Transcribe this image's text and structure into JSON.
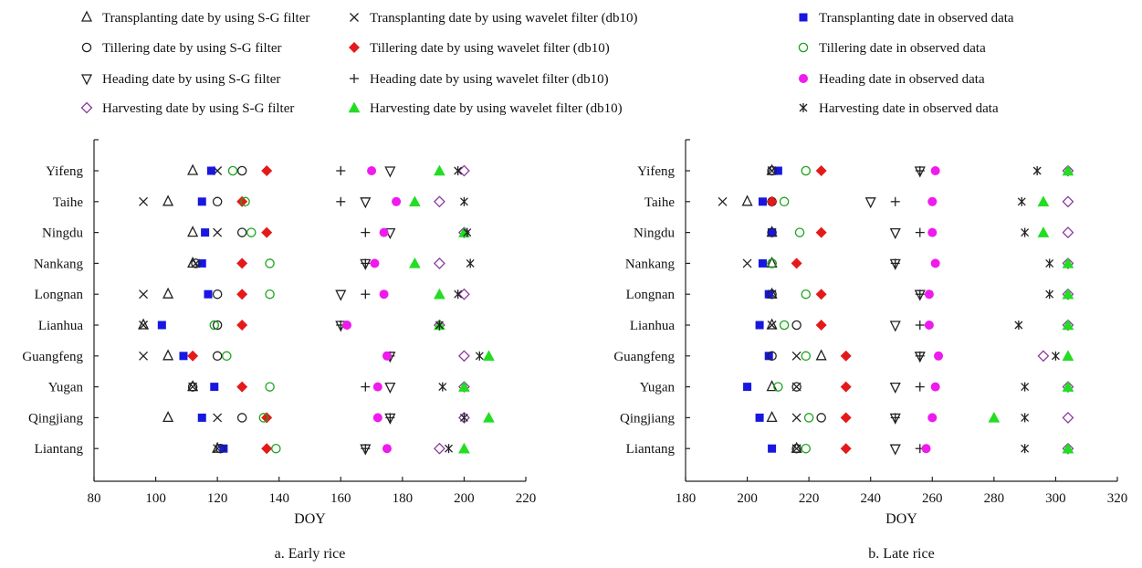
{
  "legend": [
    {
      "id": "sg_transplant",
      "label": "Transplanting date by using S-G filter",
      "marker": "triangle-up-open",
      "color": "#222222"
    },
    {
      "id": "wv_transplant",
      "label": "Transplanting date by using wavelet filter (db10)",
      "marker": "x",
      "color": "#222222"
    },
    {
      "id": "obs_transplant",
      "label": "Transplanting date in observed data",
      "marker": "square-filled",
      "color": "#1717e0"
    },
    {
      "id": "sg_tiller",
      "label": "Tillering date by using S-G filter",
      "marker": "circle-open",
      "color": "#222222"
    },
    {
      "id": "wv_tiller",
      "label": "Tillering date by using wavelet filter (db10)",
      "marker": "diamond-filled",
      "color": "#e41a1a"
    },
    {
      "id": "obs_tiller",
      "label": "Tillering date in observed data",
      "marker": "circle-open",
      "color": "#1aa31a"
    },
    {
      "id": "sg_heading",
      "label": "Heading date by using S-G filter",
      "marker": "triangle-down-open",
      "color": "#222222"
    },
    {
      "id": "wv_heading",
      "label": "Heading date by using wavelet filter (db10)",
      "marker": "plus",
      "color": "#222222"
    },
    {
      "id": "obs_heading",
      "label": "Heading date in observed data",
      "marker": "circle-filled",
      "color": "#ee1aee"
    },
    {
      "id": "sg_harvest",
      "label": "Harvesting date by using S-G filter",
      "marker": "diamond-open",
      "color": "#8b3a9e"
    },
    {
      "id": "wv_harvest",
      "label": "Harvesting date by using wavelet filter (db10)",
      "marker": "triangle-up-filled",
      "color": "#22dd22"
    },
    {
      "id": "obs_harvest",
      "label": "Harvesting date in observed data",
      "marker": "asterisk",
      "color": "#222222"
    }
  ],
  "chart_data": [
    {
      "type": "scatter",
      "caption": "a. Early rice",
      "xlabel": "DOY",
      "xlim": [
        80,
        220
      ],
      "xticks": [
        80,
        100,
        120,
        140,
        160,
        180,
        200,
        220
      ],
      "categories": [
        "Yifeng",
        "Taihe",
        "Ningdu",
        "Nankang",
        "Longnan",
        "Lianhua",
        "Guangfeng",
        "Yugan",
        "Qingjiang",
        "Liantang"
      ],
      "series": [
        {
          "id": "sg_transplant",
          "values": [
            112,
            104,
            112,
            112,
            104,
            96,
            104,
            112,
            104,
            120
          ]
        },
        {
          "id": "wv_transplant",
          "values": [
            120,
            96,
            120,
            113,
            96,
            96,
            96,
            112,
            120,
            120
          ]
        },
        {
          "id": "obs_transplant",
          "values": [
            118,
            115,
            116,
            115,
            117,
            102,
            109,
            119,
            115,
            122
          ]
        },
        {
          "id": "sg_tiller",
          "values": [
            128,
            120,
            128,
            113,
            120,
            120,
            120,
            112,
            128,
            121
          ]
        },
        {
          "id": "wv_tiller",
          "values": [
            136,
            128,
            136,
            128,
            128,
            128,
            112,
            128,
            136,
            136
          ]
        },
        {
          "id": "obs_tiller",
          "values": [
            125,
            129,
            131,
            137,
            137,
            119,
            123,
            137,
            135,
            139
          ]
        },
        {
          "id": "sg_heading",
          "values": [
            176,
            168,
            176,
            168,
            160,
            160,
            176,
            176,
            176,
            168
          ]
        },
        {
          "id": "wv_heading",
          "values": [
            160,
            160,
            168,
            168,
            168,
            160,
            176,
            168,
            176,
            168
          ]
        },
        {
          "id": "obs_heading",
          "values": [
            170,
            178,
            174,
            171,
            174,
            162,
            175,
            172,
            172,
            175
          ]
        },
        {
          "id": "sg_harvest",
          "values": [
            200,
            192,
            200,
            192,
            200,
            192,
            200,
            200,
            200,
            192
          ]
        },
        {
          "id": "wv_harvest",
          "values": [
            192,
            184,
            200,
            184,
            192,
            192,
            208,
            200,
            208,
            200
          ]
        },
        {
          "id": "obs_harvest",
          "values": [
            198,
            200,
            201,
            202,
            198,
            192,
            205,
            193,
            200,
            195
          ]
        }
      ]
    },
    {
      "type": "scatter",
      "caption": "b. Late rice",
      "xlabel": "DOY",
      "xlim": [
        180,
        320
      ],
      "xticks": [
        180,
        200,
        220,
        240,
        260,
        280,
        300,
        320
      ],
      "categories": [
        "Yifeng",
        "Taihe",
        "Ningdu",
        "Nankang",
        "Longnan",
        "Lianhua",
        "Guangfeng",
        "Yugan",
        "Qingjiang",
        "Liantang"
      ],
      "series": [
        {
          "id": "sg_transplant",
          "values": [
            208,
            200,
            208,
            208,
            208,
            208,
            224,
            208,
            208,
            216
          ]
        },
        {
          "id": "wv_transplant",
          "values": [
            208,
            192,
            208,
            200,
            208,
            208,
            216,
            216,
            216,
            216
          ]
        },
        {
          "id": "obs_transplant",
          "values": [
            210,
            205,
            208,
            205,
            207,
            204,
            207,
            200,
            204,
            208
          ]
        },
        {
          "id": "sg_tiller",
          "values": [
            208,
            208,
            208,
            208,
            208,
            216,
            208,
            216,
            224,
            216
          ]
        },
        {
          "id": "wv_tiller",
          "values": [
            224,
            208,
            224,
            216,
            224,
            224,
            232,
            232,
            232,
            232
          ]
        },
        {
          "id": "obs_tiller",
          "values": [
            219,
            212,
            217,
            208,
            219,
            212,
            219,
            210,
            220,
            219
          ]
        },
        {
          "id": "sg_heading",
          "values": [
            256,
            240,
            248,
            248,
            256,
            248,
            256,
            248,
            248,
            248
          ]
        },
        {
          "id": "wv_heading",
          "values": [
            256,
            248,
            256,
            248,
            256,
            256,
            256,
            256,
            248,
            256
          ]
        },
        {
          "id": "obs_heading",
          "values": [
            261,
            260,
            260,
            261,
            259,
            259,
            262,
            261,
            260,
            258
          ]
        },
        {
          "id": "sg_harvest",
          "values": [
            304,
            304,
            304,
            304,
            304,
            304,
            296,
            304,
            304,
            304
          ]
        },
        {
          "id": "wv_harvest",
          "values": [
            304,
            296,
            296,
            304,
            304,
            304,
            304,
            304,
            280,
            304
          ]
        },
        {
          "id": "obs_harvest",
          "values": [
            294,
            289,
            290,
            298,
            298,
            288,
            300,
            290,
            290,
            290
          ]
        }
      ]
    }
  ]
}
